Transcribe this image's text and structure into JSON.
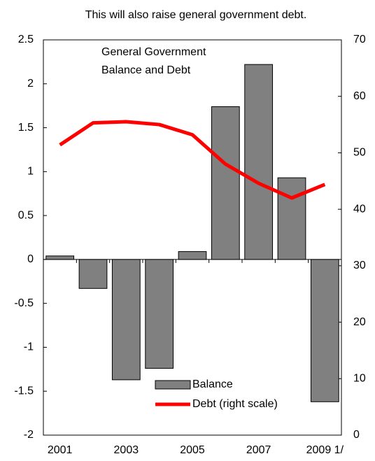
{
  "chart_data": {
    "type": "bar_line",
    "title": "This will also raise general government debt.",
    "annotation": [
      "General Government",
      "Balance and Debt"
    ],
    "categories": [
      "2001",
      null,
      "2003",
      null,
      "2005",
      null,
      "2007",
      null,
      "2009 1/"
    ],
    "series": [
      {
        "name": "Balance",
        "type": "bar",
        "color": "#808080",
        "values": [
          0.04,
          -0.33,
          -1.37,
          -1.24,
          0.09,
          1.74,
          2.22,
          0.93,
          -1.62
        ]
      },
      {
        "name": "Debt (right scale)",
        "type": "line",
        "axis": "y2",
        "color": "#ff0000",
        "values": [
          51.4,
          55.3,
          55.5,
          55.0,
          53.2,
          48.0,
          44.6,
          42.0,
          44.4
        ]
      }
    ],
    "ylim": [
      -2,
      2.5
    ],
    "yticks": [
      -2,
      -1.5,
      -1,
      -0.5,
      0,
      0.5,
      1,
      1.5,
      2,
      2.5
    ],
    "y2lim": [
      0,
      70
    ],
    "y2ticks": [
      0,
      10,
      20,
      30,
      40,
      50,
      60,
      70
    ],
    "legend": "bottom-center"
  }
}
